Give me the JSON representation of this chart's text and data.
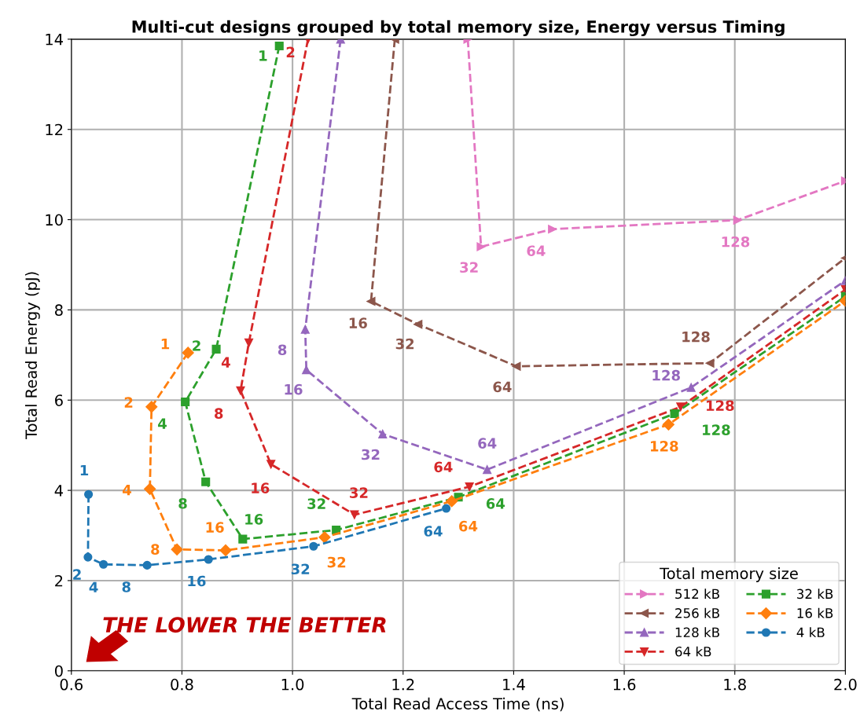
{
  "chart_data": {
    "type": "line",
    "title": "Multi-cut designs grouped by total memory size, Energy versus Timing",
    "xlabel": "Total Read Access Time (ns)",
    "ylabel": "Total Read Energy (pJ)",
    "legend_title": "Total memory size",
    "xlim": [
      0.6,
      2.0
    ],
    "ylim": [
      0,
      14
    ],
    "xticks": [
      0.6,
      0.8,
      {
        "value": 1.0,
        "label": "1.0"
      },
      1.2,
      1.4,
      1.6,
      1.8,
      {
        "value": 2.0,
        "label": "2.0"
      }
    ],
    "yticks": [
      0,
      2,
      4,
      6,
      8,
      10,
      12,
      14
    ],
    "grid": true,
    "legend": "bottom right",
    "line_style": "dashed",
    "annotations": [
      {
        "text": "32",
        "x": 1.341,
        "y": 9.4
      },
      {
        "text": "64",
        "x": 1.47,
        "y": 9.79
      },
      {
        "text": "128",
        "x": 1.805,
        "y": 9.99
      },
      {
        "text": "16",
        "x": 1.142,
        "y": 8.19
      },
      {
        "text": "32",
        "x": 1.227,
        "y": 7.68
      },
      {
        "text": "64",
        "x": 1.405,
        "y": 6.75
      },
      {
        "text": "128",
        "x": 1.755,
        "y": 6.82
      },
      {
        "text": "8",
        "x": 1.023,
        "y": 7.57
      },
      {
        "text": "16",
        "x": 1.025,
        "y": 6.67
      },
      {
        "text": "32",
        "x": 1.163,
        "y": 5.25
      },
      {
        "text": "64",
        "x": 1.352,
        "y": 4.46
      },
      {
        "text": "128",
        "x": 1.721,
        "y": 6.28
      },
      {
        "text": "2",
        "x": 1.028,
        "y": 14
      },
      {
        "text": "4",
        "x": 0.921,
        "y": 7.27
      },
      {
        "text": "8",
        "x": 0.906,
        "y": 6.21
      },
      {
        "text": "16",
        "x": 0.961,
        "y": 4.58
      },
      {
        "text": "32",
        "x": 1.112,
        "y": 3.46
      },
      {
        "text": "64",
        "x": 1.32,
        "y": 4.08
      },
      {
        "text": "128",
        "x": 1.702,
        "y": 5.85
      },
      {
        "text": "1",
        "x": 0.976,
        "y": 13.85
      },
      {
        "text": "2",
        "x": 0.862,
        "y": 7.13
      },
      {
        "text": "4",
        "x": 0.806,
        "y": 5.96
      },
      {
        "text": "8",
        "x": 0.843,
        "y": 4.19
      },
      {
        "text": "16",
        "x": 0.91,
        "y": 2.92
      },
      {
        "text": "32",
        "x": 1.079,
        "y": 3.12
      },
      {
        "text": "64",
        "x": 1.3,
        "y": 3.85
      },
      {
        "text": "128",
        "x": 1.691,
        "y": 5.7
      },
      {
        "text": "1",
        "x": 0.811,
        "y": 7.05
      },
      {
        "text": "2",
        "x": 0.745,
        "y": 5.85
      },
      {
        "text": "4",
        "x": 0.742,
        "y": 4.03
      },
      {
        "text": "8",
        "x": 0.791,
        "y": 2.69
      },
      {
        "text": "16",
        "x": 0.879,
        "y": 2.67
      },
      {
        "text": "32",
        "x": 1.058,
        "y": 2.96
      },
      {
        "text": "64",
        "x": 1.288,
        "y": 3.76
      },
      {
        "text": "128",
        "x": 1.68,
        "y": 5.46
      },
      {
        "text": "1",
        "x": 0.631,
        "y": 3.91
      },
      {
        "text": "2",
        "x": 0.63,
        "y": 2.52
      },
      {
        "text": "4",
        "x": 0.658,
        "y": 2.36
      },
      {
        "text": "8",
        "x": 0.737,
        "y": 2.34
      },
      {
        "text": "16",
        "x": 0.848,
        "y": 2.47
      },
      {
        "text": "32",
        "x": 1.038,
        "y": 2.76
      },
      {
        "text": "64",
        "x": 1.278,
        "y": 3.6
      },
      "THE LOWER THE BETTER"
    ],
    "series": [
      {
        "name": "512 kB",
        "color": "#e377c2",
        "marker": "triangle-right",
        "x": [
          1.317,
          1.341,
          1.47,
          1.805,
          2.0
        ],
        "values": [
          14,
          9.4,
          9.79,
          9.99,
          10.86
        ]
      },
      {
        "name": "256 kB",
        "color": "#8c564b",
        "marker": "triangle-left",
        "x": [
          1.185,
          1.142,
          1.227,
          1.405,
          1.755,
          2.0
        ],
        "values": [
          14,
          8.19,
          7.68,
          6.75,
          6.82,
          9.15
        ]
      },
      {
        "name": "128 kB",
        "color": "#9467bd",
        "marker": "triangle",
        "x": [
          1.087,
          1.023,
          1.025,
          1.163,
          1.352,
          1.721,
          2.0
        ],
        "values": [
          14,
          7.57,
          6.67,
          5.25,
          4.46,
          6.28,
          8.65
        ]
      },
      {
        "name": "64 kB",
        "color": "#d62728",
        "marker": "triangle-down",
        "x": [
          1.028,
          0.921,
          0.906,
          0.961,
          1.112,
          1.32,
          1.702,
          2.0
        ],
        "values": [
          14,
          7.27,
          6.21,
          4.58,
          3.46,
          4.08,
          5.85,
          8.45
        ]
      },
      {
        "name": "32 kB",
        "color": "#2ca02c",
        "marker": "square",
        "x": [
          0.976,
          0.862,
          0.806,
          0.843,
          0.91,
          1.079,
          1.3,
          1.691,
          2.0
        ],
        "values": [
          13.85,
          7.13,
          5.96,
          4.19,
          2.92,
          3.12,
          3.85,
          5.7,
          8.3
        ]
      },
      {
        "name": "16 kB",
        "color": "#ff7f0e",
        "marker": "diamond",
        "x": [
          0.811,
          0.745,
          0.742,
          0.791,
          0.879,
          1.058,
          1.288,
          1.68,
          2.0
        ],
        "values": [
          7.05,
          5.85,
          4.03,
          2.69,
          2.67,
          2.96,
          3.76,
          5.46,
          8.2
        ]
      },
      {
        "name": "4 kB",
        "color": "#1f77b4",
        "marker": "circle",
        "x": [
          0.631,
          0.63,
          0.658,
          0.737,
          0.848,
          1.038,
          1.278
        ],
        "values": [
          3.91,
          2.52,
          2.36,
          2.34,
          2.47,
          2.76,
          3.6
        ]
      }
    ]
  }
}
